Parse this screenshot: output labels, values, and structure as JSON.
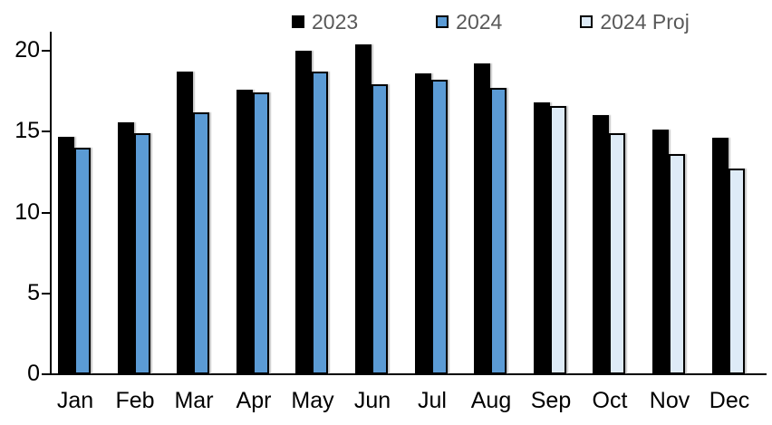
{
  "chart_data": {
    "type": "bar",
    "title": "",
    "xlabel": "",
    "ylabel": "",
    "categories": [
      "Jan",
      "Feb",
      "Mar",
      "Apr",
      "May",
      "Jun",
      "Jul",
      "Aug",
      "Sep",
      "Oct",
      "Nov",
      "Dec"
    ],
    "series": [
      {
        "name": "2023",
        "color": "#000000",
        "values": [
          14.7,
          15.6,
          18.7,
          17.6,
          20.0,
          20.4,
          18.6,
          19.2,
          16.8,
          16.0,
          15.1,
          14.6
        ]
      },
      {
        "name": "2024",
        "color": "#5B9BD5",
        "values": [
          14.0,
          14.9,
          16.2,
          17.4,
          18.7,
          17.9,
          18.2,
          17.7,
          null,
          null,
          null,
          null
        ]
      },
      {
        "name": "2024 Proj",
        "color": "#DEEBF7",
        "values": [
          null,
          null,
          null,
          null,
          null,
          null,
          null,
          null,
          16.6,
          14.9,
          13.6,
          12.7
        ]
      }
    ],
    "ylim": [
      0,
      21.2
    ],
    "yticks": [
      0,
      5,
      10,
      15,
      20
    ],
    "grid": false,
    "legend_position": "top-center"
  },
  "colors": {
    "axis": "#000000",
    "legend_text": "#595959",
    "background": "#FFFFFF"
  }
}
